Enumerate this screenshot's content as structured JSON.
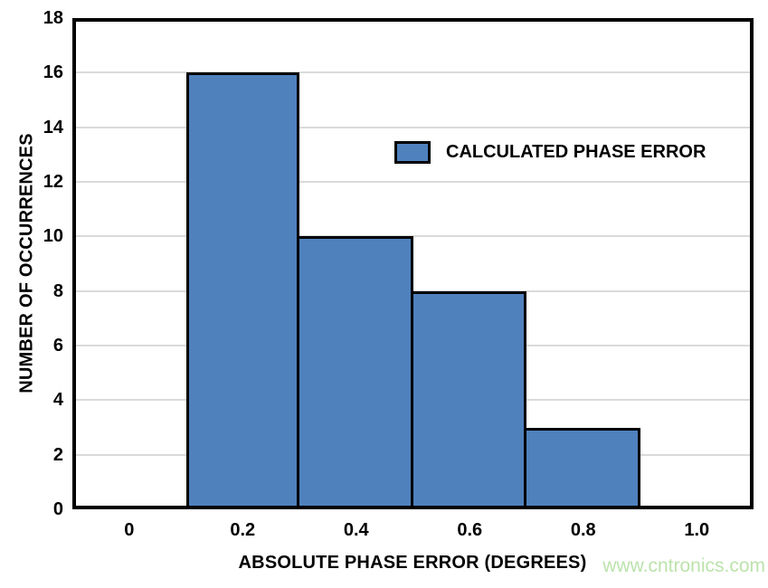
{
  "chart_data": {
    "type": "bar",
    "title": "",
    "xlabel": "ABSOLUTE PHASE ERROR (DEGREES)",
    "ylabel": "NUMBER OF OCCURRENCES",
    "xlim": [
      -0.1,
      1.1
    ],
    "ylim": [
      0,
      18
    ],
    "xticks": [
      0,
      0.2,
      0.4,
      0.6,
      0.8,
      1.0
    ],
    "xtick_labels": [
      "0",
      "0.2",
      "0.4",
      "0.6",
      "0.8",
      "1.0"
    ],
    "yticks": [
      0,
      2,
      4,
      6,
      8,
      10,
      12,
      14,
      16,
      18
    ],
    "ytick_labels": [
      "0",
      "2",
      "4",
      "6",
      "8",
      "10",
      "12",
      "14",
      "16",
      "18"
    ],
    "grid": "horizontal",
    "legend": {
      "label": "CALCULATED PHASE ERROR",
      "position": "inside-upper-right-of-center"
    },
    "bars": [
      {
        "x0": 0.1,
        "x1": 0.3,
        "value": 16
      },
      {
        "x0": 0.3,
        "x1": 0.5,
        "value": 10
      },
      {
        "x0": 0.5,
        "x1": 0.7,
        "value": 8
      },
      {
        "x0": 0.7,
        "x1": 0.9,
        "value": 3
      }
    ],
    "colors": {
      "bar_fill": "#4F81BD",
      "bar_border": "#000000",
      "grid": "#DADADA",
      "axis": "#000000",
      "text": "#000000"
    }
  },
  "watermark": {
    "text": "www.cntronics.com",
    "color": "#BCE3AC"
  }
}
